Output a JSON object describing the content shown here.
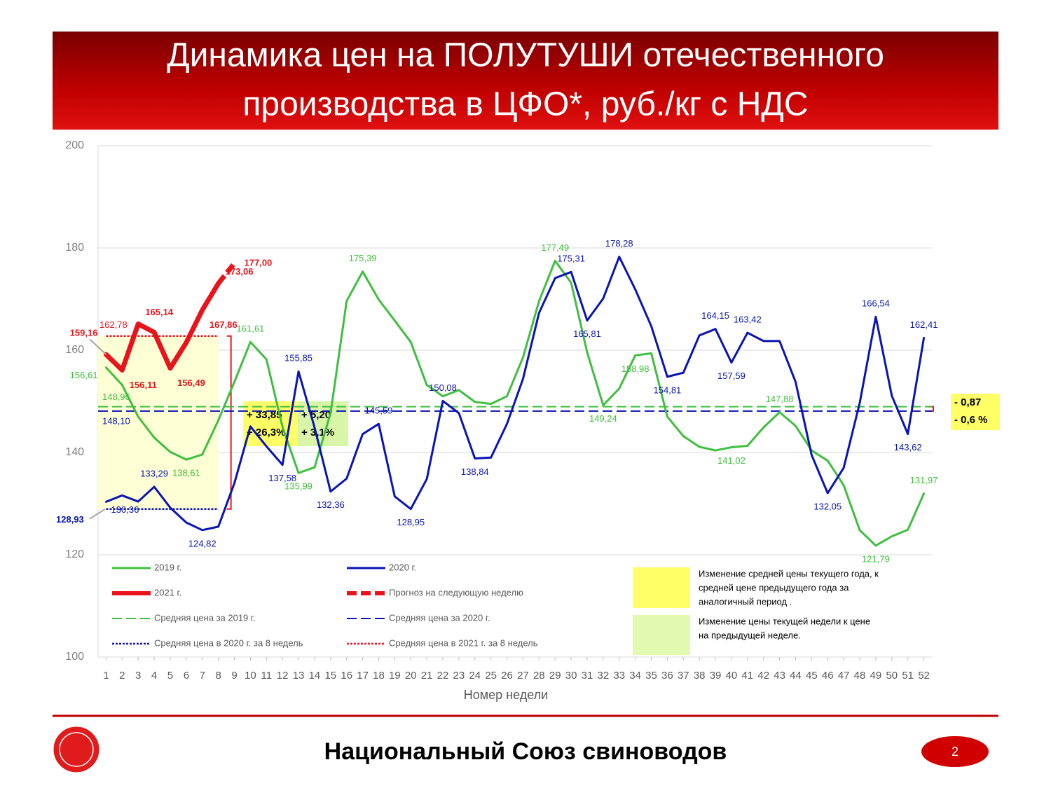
{
  "header": {
    "title_lines": [
      "Динамика цен на ПОЛУТУШИ отечественного",
      "производства в ЦФО*, руб./кг с НДС"
    ]
  },
  "chart_data": {
    "type": "line",
    "xlabel": "Номер недели",
    "x": [
      1,
      2,
      3,
      4,
      5,
      6,
      7,
      8,
      9,
      10,
      11,
      12,
      13,
      14,
      15,
      16,
      17,
      18,
      19,
      20,
      21,
      22,
      23,
      24,
      25,
      26,
      27,
      28,
      29,
      30,
      31,
      32,
      33,
      34,
      35,
      36,
      37,
      38,
      39,
      40,
      41,
      42,
      43,
      44,
      45,
      46,
      47,
      48,
      49,
      50,
      51,
      52
    ],
    "xlim": [
      0.5,
      52.5
    ],
    "xticks": [
      1,
      2,
      3,
      4,
      5,
      6,
      7,
      8,
      9,
      10,
      11,
      12,
      13,
      14,
      15,
      16,
      17,
      18,
      19,
      20,
      21,
      22,
      23,
      24,
      25,
      26,
      27,
      28,
      29,
      30,
      31,
      32,
      33,
      34,
      35,
      36,
      37,
      38,
      39,
      40,
      41,
      42,
      43,
      44,
      45,
      46,
      47,
      48,
      49,
      50,
      51,
      52
    ],
    "ylim": [
      100,
      200
    ],
    "yticks": [
      100,
      120,
      140,
      160,
      180,
      200
    ],
    "grid": true,
    "series": [
      {
        "name": "2019 г.",
        "color": "#3fbf3f",
        "width": 3,
        "values": [
          156.61,
          153.2,
          147,
          142.9,
          140.1,
          138.61,
          139.6,
          146.3,
          153.8,
          161.61,
          158.2,
          145,
          135.99,
          137.1,
          147.7,
          169.6,
          175.39,
          169.9,
          165.8,
          161.6,
          153.2,
          151,
          152.2,
          149.9,
          149.5,
          151,
          158.6,
          169.6,
          177.49,
          173.2,
          159.6,
          149.24,
          152.5,
          158.98,
          159.4,
          147,
          143.2,
          141.1,
          140.4,
          141.02,
          141.3,
          144.9,
          147.88,
          145.2,
          140.4,
          138.4,
          133.6,
          124.8,
          121.79,
          123.6,
          124.9,
          131.97
        ],
        "value_labels": [
          "156,61",
          null,
          null,
          null,
          null,
          "138,61",
          null,
          null,
          null,
          "161,61",
          null,
          null,
          "135,99",
          null,
          null,
          null,
          "175,39",
          null,
          null,
          null,
          null,
          null,
          null,
          null,
          null,
          null,
          null,
          null,
          "177,49",
          null,
          null,
          "149,24",
          null,
          "158,98",
          null,
          null,
          null,
          null,
          null,
          "141,02",
          null,
          null,
          "147,88",
          null,
          null,
          null,
          null,
          null,
          "121,79",
          null,
          null,
          "131,97"
        ]
      },
      {
        "name": "2020 г.",
        "color": "#0a14b4",
        "width": 3,
        "values": [
          130.36,
          131.6,
          130.4,
          133.29,
          129.2,
          126.3,
          124.82,
          125.5,
          134,
          145.1,
          141.2,
          137.58,
          155.85,
          144.9,
          132.36,
          134.9,
          143.6,
          145.59,
          131.4,
          128.95,
          134.8,
          150.08,
          147.7,
          138.84,
          139,
          145.6,
          154.4,
          167.3,
          174.1,
          175.31,
          165.81,
          170.1,
          178.28,
          171.9,
          164.7,
          154.81,
          155.6,
          162.9,
          164.15,
          157.59,
          163.42,
          161.8,
          161.8,
          153.8,
          139.5,
          132.05,
          137,
          149.7,
          166.54,
          151.1,
          143.62,
          162.41
        ],
        "value_labels": [
          "130,36",
          null,
          null,
          "133,29",
          null,
          null,
          "124,82",
          null,
          null,
          null,
          null,
          "137,58",
          "155,85",
          null,
          "132,36",
          null,
          null,
          "145,59",
          null,
          "128,95",
          null,
          "150,08",
          null,
          "138,84",
          null,
          null,
          null,
          null,
          null,
          "175,31",
          "165,81",
          null,
          "178,28",
          null,
          null,
          "154,81",
          null,
          null,
          "164,15",
          "157,59",
          "163,42",
          null,
          null,
          null,
          null,
          "132,05",
          null,
          null,
          "166,54",
          null,
          "143,62",
          "162,41"
        ]
      },
      {
        "name": "2021 г.",
        "color": "#e8141b",
        "width": 7,
        "values": [
          159.16,
          156.11,
          165.14,
          163.5,
          156.49,
          161.5,
          167.86,
          173.06,
          null,
          null,
          null,
          null,
          null,
          null,
          null,
          null,
          null,
          null,
          null,
          null,
          null,
          null,
          null,
          null,
          null,
          null,
          null,
          null,
          null,
          null,
          null,
          null,
          null,
          null,
          null,
          null,
          null,
          null,
          null,
          null,
          null,
          null,
          null,
          null,
          null,
          null,
          null,
          null,
          null,
          null,
          null,
          null
        ],
        "value_labels": [
          "159,16",
          "156,11",
          "165,14",
          null,
          "156,49",
          null,
          "167,86",
          "173,06",
          null,
          null,
          null,
          null,
          null,
          null,
          null,
          null,
          null,
          null,
          null,
          null,
          null,
          null,
          null,
          null,
          null,
          null,
          null,
          null,
          null,
          null,
          null,
          null,
          null,
          null,
          null,
          null,
          null,
          null,
          null,
          null,
          null,
          null,
          null,
          null,
          null,
          null,
          null,
          null,
          null,
          null,
          null,
          null
        ]
      },
      {
        "name": "Прогноз на следующую неделю",
        "color": "#e8141b",
        "width": 7,
        "style": "dashed",
        "values": [
          null,
          null,
          null,
          null,
          null,
          null,
          null,
          173.06,
          177.0,
          null,
          null,
          null,
          null,
          null,
          null,
          null,
          null,
          null,
          null,
          null,
          null,
          null,
          null,
          null,
          null,
          null,
          null,
          null,
          null,
          null,
          null,
          null,
          null,
          null,
          null,
          null,
          null,
          null,
          null,
          null,
          null,
          null,
          null,
          null,
          null,
          null,
          null,
          null,
          null,
          null,
          null,
          null
        ],
        "value_labels": [
          null,
          null,
          null,
          null,
          null,
          null,
          null,
          null,
          "177,00",
          null,
          null,
          null,
          null,
          null,
          null,
          null,
          null,
          null,
          null,
          null,
          null,
          null,
          null,
          null,
          null,
          null,
          null,
          null,
          null,
          null,
          null,
          null,
          null,
          null,
          null,
          null,
          null,
          null,
          null,
          null,
          null,
          null,
          null,
          null,
          null,
          null,
          null,
          null,
          null,
          null,
          null,
          null
        ]
      }
    ],
    "reference_lines": [
      {
        "name": "Средняя цена за 2019 г.",
        "color": "#3fbf3f",
        "style": "dashed",
        "value": 148.96,
        "label": "148,96"
      },
      {
        "name": "Средняя цена за 2020 г.",
        "color": "#0a14b4",
        "style": "dashed",
        "value": 148.1,
        "label": "148,10"
      },
      {
        "name": "Средняя цена в 2020 г. за 8 недель",
        "color": "#0a14b4",
        "style": "dotted",
        "value": 128.93,
        "label": "128,93",
        "x_range": [
          1,
          8
        ]
      },
      {
        "name": "Средняя цена в 2021 г. за 8 недель",
        "color": "#e8141b",
        "style": "dotted",
        "value": 162.78,
        "label": "162,78",
        "x_range": [
          1,
          8
        ]
      }
    ],
    "annotations": [
      {
        "lines": [
          "+ 33,85",
          "+ 26,3%"
        ],
        "color": "#ffff66"
      },
      {
        "lines": [
          "+ 5,20",
          "+ 3,1%"
        ],
        "color": "#d8f5a8"
      },
      {
        "lines": [
          "- 0,87",
          "- 0,6 %"
        ],
        "color": "#ffff66"
      }
    ],
    "notes": [
      {
        "color": "#ffff66",
        "lines": [
          "Изменение средней цены текущего года, к",
          "средней цене предыдущего года за",
          "аналогичный период ."
        ]
      },
      {
        "color": "#e2f9b0",
        "lines": [
          "Изменение цены текущей недели к цене",
          "на предыдущей неделе."
        ]
      }
    ]
  },
  "footer": {
    "organization": "Национальный Союз свиноводов",
    "page": "2"
  }
}
